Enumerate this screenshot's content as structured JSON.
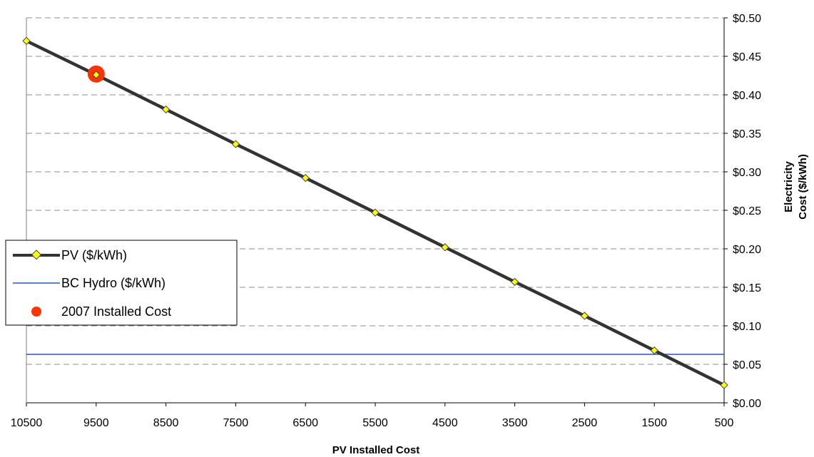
{
  "chart_data": {
    "type": "line",
    "xlabel": "PV Installed Cost",
    "ylabel_line1": "Electricity",
    "ylabel_line2": "Cost ($/kWh)",
    "x": [
      10500,
      9500,
      8500,
      7500,
      6500,
      5500,
      4500,
      3500,
      2500,
      1500,
      500
    ],
    "x_tick_labels": [
      "10500",
      "9500",
      "8500",
      "7500",
      "6500",
      "5500",
      "4500",
      "3500",
      "2500",
      "1500",
      "500"
    ],
    "xlim": [
      10500,
      500
    ],
    "x_reversed": true,
    "ylim": [
      0,
      0.5
    ],
    "y_ticks": [
      0,
      0.05,
      0.1,
      0.15,
      0.2,
      0.25,
      0.3,
      0.35,
      0.4,
      0.45,
      0.5
    ],
    "y_tick_labels": [
      "$0.00",
      "$0.05",
      "$0.10",
      "$0.15",
      "$0.20",
      "$0.25",
      "$0.30",
      "$0.35",
      "$0.40",
      "$0.45",
      "$0.50"
    ],
    "y_axis_side": "right",
    "grid": "horizontal dashed",
    "legend_position": "center-left",
    "series": [
      {
        "name": "PV ($/kWh)",
        "kind": "line-with-markers",
        "color": "#333333",
        "marker_color": "#ffff00",
        "x": [
          10500,
          9500,
          8500,
          7500,
          6500,
          5500,
          4500,
          3500,
          2500,
          1500,
          500
        ],
        "values": [
          0.47,
          0.426,
          0.381,
          0.336,
          0.292,
          0.247,
          0.202,
          0.157,
          0.113,
          0.068,
          0.023
        ]
      },
      {
        "name": "BC Hydro ($/kWh)",
        "kind": "horizontal-line",
        "color": "#2a4fd6",
        "value": 0.063
      },
      {
        "name": "2007 Installed Cost",
        "kind": "point",
        "color": "#ff3300",
        "x": 9500,
        "value": 0.427
      }
    ]
  }
}
